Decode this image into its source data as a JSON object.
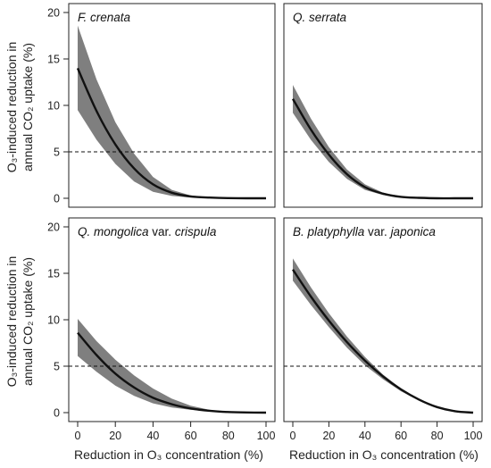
{
  "figure": {
    "ylabel_line1": "O₃-induced reduction in",
    "ylabel_line2": "annual CO₂ uptake (%)",
    "xlabel": "Reduction in O₃ concentration (%)"
  },
  "chart_data": [
    {
      "type": "area",
      "panel_title_parts": [
        {
          "text": "F. crenata",
          "italic": true
        }
      ],
      "xlim": [
        0,
        100
      ],
      "ylim": [
        0,
        20
      ],
      "x_ticks": [
        0,
        20,
        40,
        60,
        80,
        100
      ],
      "y_ticks": [
        0,
        5,
        10,
        15,
        20
      ],
      "reference_line_y": 5,
      "x": [
        0,
        10,
        20,
        30,
        40,
        50,
        60,
        70,
        80,
        90,
        100
      ],
      "mean": [
        14.0,
        9.4,
        5.8,
        3.2,
        1.5,
        0.6,
        0.2,
        0.08,
        0.02,
        0.0,
        0.0
      ],
      "upper": [
        18.6,
        12.8,
        8.2,
        4.8,
        2.3,
        0.9,
        0.3,
        0.12,
        0.03,
        0.0,
        0.0
      ],
      "lower": [
        9.5,
        6.3,
        3.7,
        1.8,
        0.7,
        0.25,
        0.08,
        0.02,
        0.0,
        0.0,
        0.0
      ]
    },
    {
      "type": "area",
      "panel_title_parts": [
        {
          "text": "Q. serrata",
          "italic": true
        }
      ],
      "xlim": [
        0,
        100
      ],
      "ylim": [
        0,
        20
      ],
      "x_ticks": [
        0,
        20,
        40,
        60,
        80,
        100
      ],
      "y_ticks": [
        0,
        5,
        10,
        15,
        20
      ],
      "reference_line_y": 5,
      "x": [
        0,
        10,
        20,
        30,
        40,
        50,
        60,
        70,
        80,
        90,
        100
      ],
      "mean": [
        10.7,
        7.4,
        4.7,
        2.6,
        1.2,
        0.5,
        0.15,
        0.05,
        0.0,
        0.0,
        0.0
      ],
      "upper": [
        12.2,
        8.6,
        5.5,
        3.1,
        1.5,
        0.6,
        0.2,
        0.06,
        0.0,
        0.0,
        0.0
      ],
      "lower": [
        9.2,
        6.3,
        3.9,
        2.1,
        0.9,
        0.35,
        0.1,
        0.03,
        0.0,
        0.0,
        0.0
      ]
    },
    {
      "type": "area",
      "panel_title_parts": [
        {
          "text": "Q. mongolica",
          "italic": true
        },
        {
          "text": " var. ",
          "italic": false
        },
        {
          "text": "crispula",
          "italic": true
        }
      ],
      "xlim": [
        0,
        100
      ],
      "ylim": [
        0,
        20
      ],
      "x_ticks": [
        0,
        20,
        40,
        60,
        80,
        100
      ],
      "y_ticks": [
        0,
        5,
        10,
        15,
        20
      ],
      "reference_line_y": 5,
      "x": [
        0,
        10,
        20,
        30,
        40,
        50,
        60,
        70,
        80,
        90,
        100
      ],
      "mean": [
        8.6,
        6.2,
        4.2,
        2.7,
        1.6,
        0.9,
        0.45,
        0.2,
        0.07,
        0.02,
        0.0
      ],
      "upper": [
        10.1,
        7.7,
        5.7,
        4.0,
        2.6,
        1.5,
        0.75,
        0.3,
        0.1,
        0.03,
        0.0
      ],
      "lower": [
        6.1,
        4.4,
        2.9,
        1.8,
        1.0,
        0.55,
        0.3,
        0.13,
        0.04,
        0.0,
        0.0
      ]
    },
    {
      "type": "area",
      "panel_title_parts": [
        {
          "text": "B. platyphylla",
          "italic": true
        },
        {
          "text": " var. ",
          "italic": false
        },
        {
          "text": "japonica",
          "italic": true
        }
      ],
      "xlim": [
        0,
        100
      ],
      "ylim": [
        0,
        20
      ],
      "x_ticks": [
        0,
        20,
        40,
        60,
        80,
        100
      ],
      "y_ticks": [
        0,
        5,
        10,
        15,
        20
      ],
      "reference_line_y": 5,
      "x": [
        0,
        10,
        20,
        30,
        40,
        50,
        60,
        70,
        80,
        90,
        100
      ],
      "mean": [
        15.4,
        12.5,
        9.9,
        7.6,
        5.6,
        3.9,
        2.5,
        1.4,
        0.6,
        0.15,
        0.0
      ],
      "upper": [
        16.6,
        13.5,
        10.7,
        8.2,
        6.0,
        4.1,
        2.6,
        1.45,
        0.62,
        0.15,
        0.0
      ],
      "lower": [
        14.2,
        11.6,
        9.2,
        7.0,
        5.1,
        3.6,
        2.3,
        1.3,
        0.55,
        0.13,
        0.0
      ]
    }
  ],
  "colors": {
    "band": "#7f7f7f",
    "line": "#111111",
    "axis": "#222222",
    "reference": "#111111"
  }
}
